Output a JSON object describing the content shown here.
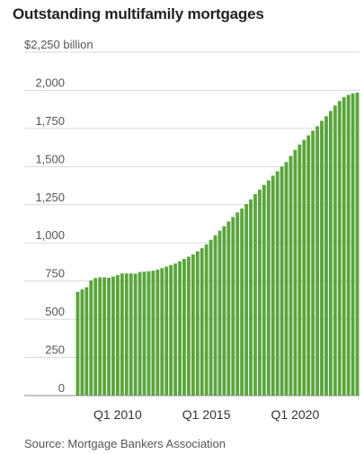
{
  "chart_data": {
    "type": "bar",
    "title": "Outstanding multifamily mortgages",
    "source": "Source: Mortgage Bankers Association",
    "ytick_labels": [
      "0",
      "250",
      "500",
      "750",
      "1,000",
      "1,250",
      "1,500",
      "1,750",
      "2,000",
      "$2,250 billion"
    ],
    "ylim": [
      0,
      2250
    ],
    "xtick_labels": [
      "Q1 2010",
      "Q1 2015",
      "Q1 2020"
    ],
    "xtick_categories": [
      "2010 Q1",
      "2015 Q1",
      "2020 Q1"
    ],
    "grid": true,
    "color": "#5aa53c",
    "categories": [
      "2007 Q4",
      "2008 Q1",
      "2008 Q2",
      "2008 Q3",
      "2008 Q4",
      "2009 Q1",
      "2009 Q2",
      "2009 Q3",
      "2009 Q4",
      "2010 Q1",
      "2010 Q2",
      "2010 Q3",
      "2010 Q4",
      "2011 Q1",
      "2011 Q2",
      "2011 Q3",
      "2011 Q4",
      "2012 Q1",
      "2012 Q2",
      "2012 Q3",
      "2012 Q4",
      "2013 Q1",
      "2013 Q2",
      "2013 Q3",
      "2013 Q4",
      "2014 Q1",
      "2014 Q2",
      "2014 Q3",
      "2014 Q4",
      "2015 Q1",
      "2015 Q2",
      "2015 Q3",
      "2015 Q4",
      "2016 Q1",
      "2016 Q2",
      "2016 Q3",
      "2016 Q4",
      "2017 Q1",
      "2017 Q2",
      "2017 Q3",
      "2017 Q4",
      "2018 Q1",
      "2018 Q2",
      "2018 Q3",
      "2018 Q4",
      "2019 Q1",
      "2019 Q2",
      "2019 Q3",
      "2019 Q4",
      "2020 Q1",
      "2020 Q2",
      "2020 Q3",
      "2020 Q4",
      "2021 Q1",
      "2021 Q2",
      "2021 Q3",
      "2021 Q4",
      "2022 Q1",
      "2022 Q2",
      "2022 Q3",
      "2022 Q4",
      "2023 Q1",
      "2023 Q2",
      "2023 Q3"
    ],
    "values": [
      680,
      695,
      710,
      755,
      770,
      775,
      775,
      772,
      780,
      790,
      800,
      800,
      800,
      798,
      810,
      812,
      815,
      818,
      825,
      835,
      845,
      855,
      865,
      880,
      895,
      910,
      925,
      945,
      965,
      990,
      1020,
      1050,
      1080,
      1110,
      1140,
      1170,
      1200,
      1225,
      1255,
      1285,
      1320,
      1350,
      1380,
      1410,
      1440,
      1470,
      1500,
      1530,
      1570,
      1610,
      1645,
      1675,
      1705,
      1735,
      1765,
      1800,
      1830,
      1865,
      1900,
      1930,
      1955,
      1970,
      1980,
      1985
    ]
  }
}
